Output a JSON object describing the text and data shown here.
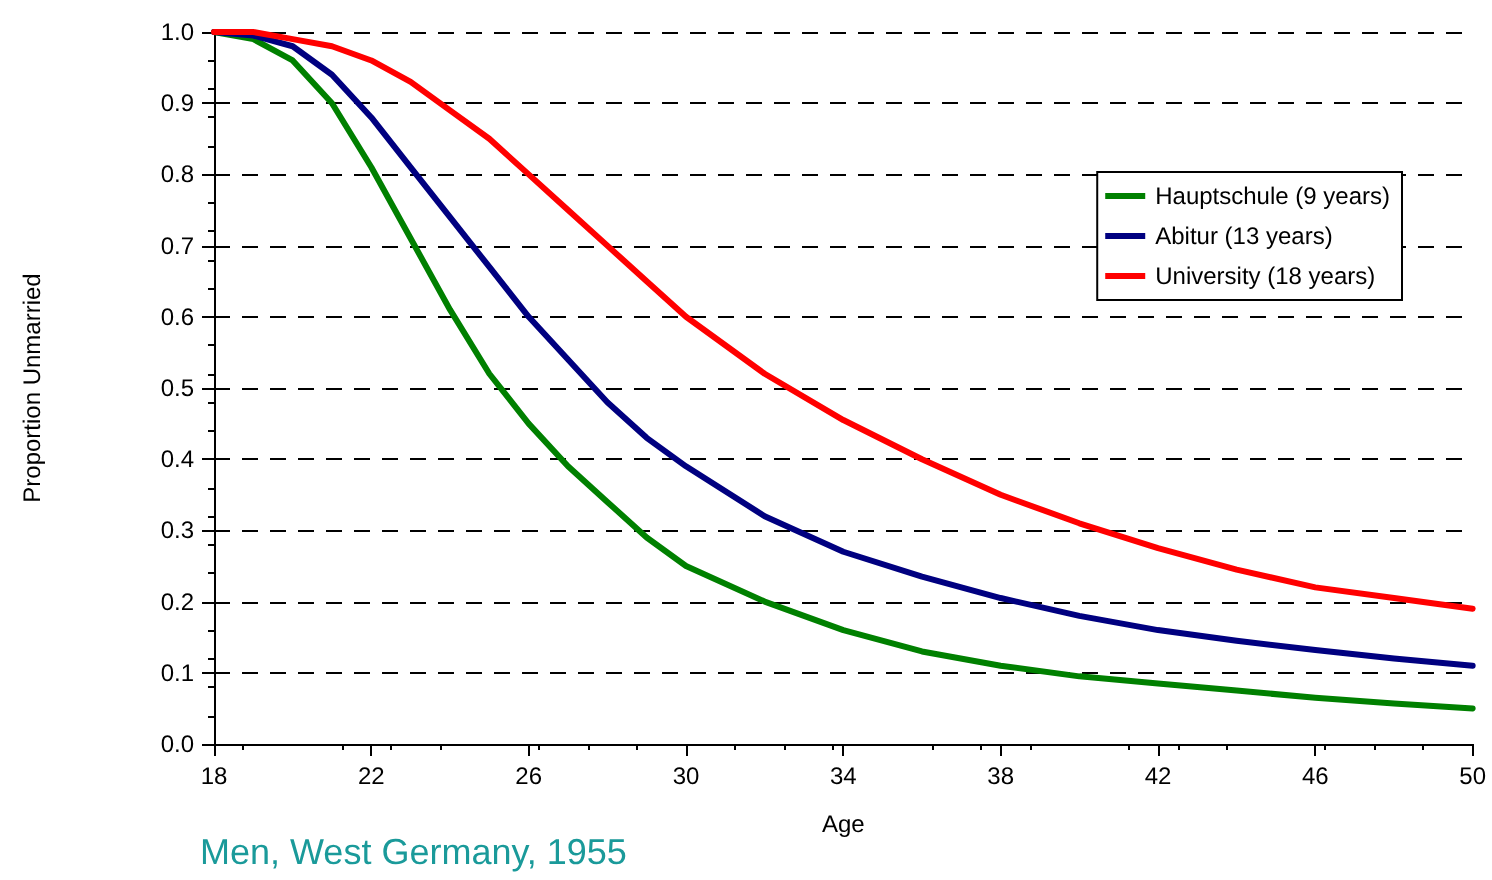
{
  "chart_data": {
    "type": "line",
    "xlabel": "Age",
    "ylabel": "Proportion Unmarried",
    "annotations": [
      "Men, West Germany, 1955"
    ],
    "x": [
      18,
      19,
      20,
      21,
      22,
      23,
      24,
      25,
      26,
      27,
      28,
      29,
      30,
      32,
      34,
      36,
      38,
      40,
      42,
      44,
      46,
      48,
      50
    ],
    "series": [
      {
        "name": "Hauptschule (9 years)",
        "color": "#008000",
        "values": [
          1.0,
          0.99,
          0.96,
          0.9,
          0.81,
          0.71,
          0.61,
          0.52,
          0.45,
          0.39,
          0.34,
          0.29,
          0.25,
          0.2,
          0.16,
          0.13,
          0.11,
          0.095,
          0.085,
          0.075,
          0.065,
          0.057,
          0.05
        ]
      },
      {
        "name": "Abitur (13 years)",
        "color": "#000080",
        "values": [
          1.0,
          0.995,
          0.98,
          0.94,
          0.88,
          0.81,
          0.74,
          0.67,
          0.6,
          0.54,
          0.48,
          0.43,
          0.39,
          0.32,
          0.27,
          0.235,
          0.205,
          0.18,
          0.16,
          0.145,
          0.132,
          0.12,
          0.11
        ]
      },
      {
        "name": "University (18 years)",
        "color": "#ff0000",
        "values": [
          1.0,
          1.0,
          0.99,
          0.98,
          0.96,
          0.93,
          0.89,
          0.85,
          0.8,
          0.75,
          0.7,
          0.65,
          0.6,
          0.52,
          0.455,
          0.4,
          0.35,
          0.31,
          0.275,
          0.245,
          0.22,
          0.205,
          0.19
        ]
      }
    ],
    "xlim": [
      18,
      50
    ],
    "xticks": [
      18,
      22,
      26,
      30,
      34,
      38,
      42,
      46,
      50
    ],
    "ylim": [
      0,
      1
    ],
    "yticks": [
      {
        "value": 0,
        "label": "0.0"
      },
      0.1,
      0.2,
      0.3,
      0.4,
      0.5,
      0.6,
      0.7,
      0.8,
      0.9,
      {
        "value": 1,
        "label": "1.0"
      }
    ],
    "grid": "y",
    "legend": "top right",
    "line_style": "solid",
    "marker": "none"
  }
}
